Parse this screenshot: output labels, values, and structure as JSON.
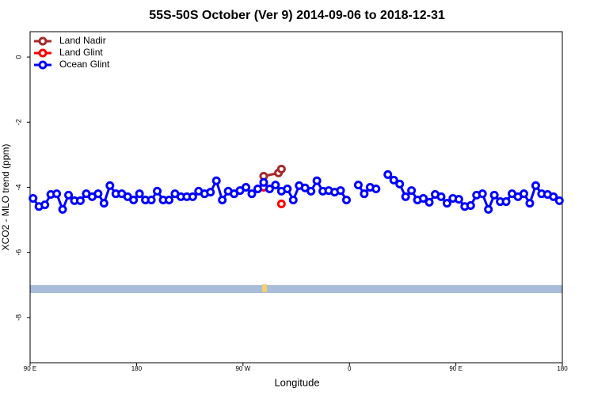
{
  "chart_data": {
    "type": "line",
    "title": "55S-50S October (Ver 9)   2014-09-06 to 2018-12-31",
    "x_label": "Longitude",
    "y_label": "XCO2 - MLO trend (ppm)",
    "xlim": [
      90,
      540
    ],
    "ylim": [
      -9.39,
      0.78
    ],
    "xticks": [
      {
        "value": 90,
        "label": "90 E"
      },
      180,
      {
        "value": 270,
        "label": "90 W"
      },
      {
        "value": 360,
        "label": "0"
      },
      {
        "value": 450,
        "label": "90 E"
      },
      {
        "value": 540,
        "label": "180"
      }
    ],
    "yticks": [
      0,
      -2,
      -4,
      -6,
      -8
    ],
    "legend": "top-left",
    "series": [
      {
        "name": "Land Nadir",
        "color": "#a52a2a",
        "x": [
          287.5,
          300,
          302.5
        ],
        "values": [
          -3.66,
          -3.56,
          -3.44
        ]
      },
      {
        "name": "Land Glint",
        "color": "#ff0000",
        "x": [
          287.5,
          297.5,
          302.5
        ],
        "values": [
          -4.0,
          null,
          -4.51
        ]
      },
      {
        "name": "Ocean Glint",
        "color": "#0000ff",
        "x": [
          92.5,
          97.5,
          102.5,
          107.5,
          112.5,
          117.5,
          122.5,
          127.5,
          132.5,
          137.5,
          142.5,
          147.5,
          152.5,
          157.5,
          162.5,
          167.5,
          172.5,
          177.5,
          182.5,
          187.5,
          192.5,
          197.5,
          202.5,
          207.5,
          212.5,
          217.5,
          222.5,
          227.5,
          232.5,
          237.5,
          242.5,
          247.5,
          252.5,
          257.5,
          262.5,
          267.5,
          272.5,
          277.5,
          282.5,
          287.5,
          292.5,
          297.5,
          302.5,
          307.5,
          312.5,
          317.5,
          322.5,
          327.5,
          332.5,
          337.5,
          342.5,
          347.5,
          352.5,
          357.5,
          362.5,
          367.5,
          372.5,
          377.5,
          382.5,
          387.5,
          392.5,
          397.5,
          402.5,
          407.5,
          412.5,
          417.5,
          422.5,
          427.5,
          432.5,
          437.5,
          442.5,
          447.5,
          452.5,
          457.5,
          462.5,
          467.5,
          472.5,
          477.5,
          482.5,
          487.5,
          492.5,
          497.5,
          502.5,
          507.5,
          512.5,
          517.5,
          522.5,
          527.5,
          532.5,
          537.5
        ],
        "values": [
          -4.34,
          -4.59,
          -4.54,
          -4.22,
          -4.2,
          -4.68,
          -4.24,
          -4.41,
          -4.41,
          -4.2,
          -4.29,
          -4.2,
          -4.49,
          -3.95,
          -4.2,
          -4.2,
          -4.29,
          -4.39,
          -4.2,
          -4.39,
          -4.39,
          -4.12,
          -4.39,
          -4.39,
          -4.2,
          -4.29,
          -4.29,
          -4.29,
          -4.12,
          -4.2,
          -4.15,
          -3.8,
          -4.39,
          -4.12,
          -4.2,
          -4.1,
          -4.0,
          -4.2,
          -4.05,
          -3.85,
          -4.05,
          -3.93,
          -4.12,
          -4.05,
          -4.39,
          -3.95,
          -4.02,
          -4.12,
          -3.8,
          -4.12,
          -4.1,
          -4.15,
          -4.1,
          -4.39,
          null,
          -3.93,
          -4.2,
          -4.0,
          -4.05,
          null,
          -3.61,
          -3.78,
          -3.9,
          -4.29,
          -4.1,
          -4.39,
          -4.34,
          -4.46,
          -4.22,
          -4.29,
          -4.49,
          -4.34,
          -4.37,
          -4.59,
          -4.56,
          -4.24,
          -4.2,
          -4.68,
          -4.24,
          -4.44,
          -4.44,
          -4.2,
          -4.29,
          -4.2,
          -4.49,
          -3.95,
          -4.2,
          -4.22,
          -4.29,
          -4.41
        ]
      }
    ]
  }
}
